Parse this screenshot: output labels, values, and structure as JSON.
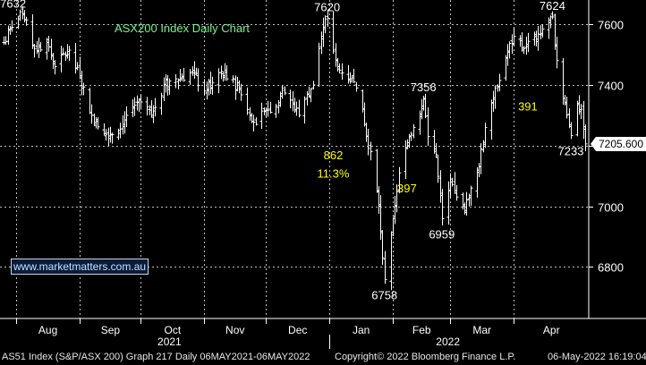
{
  "chart_data": {
    "type": "ohlc",
    "title": "ASX200 Index Daily Chart",
    "x_start": "2021-07-26",
    "x_end": "2022-05-06",
    "ylim": [
      6630,
      7680
    ],
    "grid": true,
    "month_labels": [
      {
        "date": "2021-08-01",
        "label": "Aug"
      },
      {
        "date": "2021-09-01",
        "label": "Sep"
      },
      {
        "date": "2021-10-01",
        "label": "Oct"
      },
      {
        "date": "2021-11-01",
        "label": "Nov"
      },
      {
        "date": "2021-12-01",
        "label": "Dec"
      },
      {
        "date": "2022-01-01",
        "label": "Jan"
      },
      {
        "date": "2022-02-01",
        "label": "Feb"
      },
      {
        "date": "2022-03-01",
        "label": "Mar"
      },
      {
        "date": "2022-04-01",
        "label": "Apr"
      }
    ],
    "year_labels": [
      {
        "date": "2021-10-15",
        "label": "2021"
      },
      {
        "date": "2022-02-28",
        "label": "2022"
      }
    ],
    "y_ticks": [
      6800,
      7000,
      7200,
      7400,
      7600
    ],
    "last_price": 7205.6,
    "last_price_label": "7205.600",
    "keypoints": [
      {
        "date": "2021-07-26",
        "close": 7540
      },
      {
        "date": "2021-07-30",
        "close": 7590
      },
      {
        "date": "2021-08-04",
        "close": 7632
      },
      {
        "date": "2021-08-10",
        "close": 7520
      },
      {
        "date": "2021-08-16",
        "close": 7540
      },
      {
        "date": "2021-08-20",
        "close": 7460
      },
      {
        "date": "2021-08-26",
        "close": 7510
      },
      {
        "date": "2021-09-01",
        "close": 7430
      },
      {
        "date": "2021-09-07",
        "close": 7300
      },
      {
        "date": "2021-09-13",
        "close": 7240
      },
      {
        "date": "2021-09-20",
        "close": 7250
      },
      {
        "date": "2021-09-24",
        "close": 7300
      },
      {
        "date": "2021-09-30",
        "close": 7350
      },
      {
        "date": "2021-10-06",
        "close": 7300
      },
      {
        "date": "2021-10-12",
        "close": 7400
      },
      {
        "date": "2021-10-18",
        "close": 7420
      },
      {
        "date": "2021-10-26",
        "close": 7440
      },
      {
        "date": "2021-11-01",
        "close": 7380
      },
      {
        "date": "2021-11-08",
        "close": 7440
      },
      {
        "date": "2021-11-12",
        "close": 7420
      },
      {
        "date": "2021-11-18",
        "close": 7390
      },
      {
        "date": "2021-11-26",
        "close": 7270
      },
      {
        "date": "2021-12-01",
        "close": 7320
      },
      {
        "date": "2021-12-06",
        "close": 7330
      },
      {
        "date": "2021-12-09",
        "close": 7390
      },
      {
        "date": "2021-12-13",
        "close": 7350
      },
      {
        "date": "2021-12-17",
        "close": 7300
      },
      {
        "date": "2021-12-21",
        "close": 7370
      },
      {
        "date": "2021-12-24",
        "close": 7400
      },
      {
        "date": "2021-12-28",
        "close": 7560
      },
      {
        "date": "2021-12-31",
        "close": 7620
      },
      {
        "date": "2022-01-04",
        "close": 7480
      },
      {
        "date": "2022-01-07",
        "close": 7440
      },
      {
        "date": "2022-01-11",
        "close": 7420
      },
      {
        "date": "2022-01-14",
        "close": 7390
      },
      {
        "date": "2022-01-18",
        "close": 7270
      },
      {
        "date": "2022-01-21",
        "close": 7180
      },
      {
        "date": "2022-01-25",
        "close": 7000
      },
      {
        "date": "2022-01-27",
        "close": 6830
      },
      {
        "date": "2022-01-28",
        "close": 6758
      },
      {
        "date": "2022-02-01",
        "close": 6960
      },
      {
        "date": "2022-02-04",
        "close": 7110
      },
      {
        "date": "2022-02-08",
        "close": 7200
      },
      {
        "date": "2022-02-11",
        "close": 7260
      },
      {
        "date": "2022-02-16",
        "close": 7356
      },
      {
        "date": "2022-02-18",
        "close": 7230
      },
      {
        "date": "2022-02-22",
        "close": 7170
      },
      {
        "date": "2022-02-25",
        "close": 6959
      },
      {
        "date": "2022-03-01",
        "close": 7080
      },
      {
        "date": "2022-03-04",
        "close": 7030
      },
      {
        "date": "2022-03-08",
        "close": 6980
      },
      {
        "date": "2022-03-11",
        "close": 7060
      },
      {
        "date": "2022-03-15",
        "close": 7130
      },
      {
        "date": "2022-03-18",
        "close": 7260
      },
      {
        "date": "2022-03-23",
        "close": 7390
      },
      {
        "date": "2022-03-28",
        "close": 7490
      },
      {
        "date": "2022-04-01",
        "close": 7560
      },
      {
        "date": "2022-04-06",
        "close": 7520
      },
      {
        "date": "2022-04-11",
        "close": 7560
      },
      {
        "date": "2022-04-14",
        "close": 7570
      },
      {
        "date": "2022-04-20",
        "close": 7624
      },
      {
        "date": "2022-04-22",
        "close": 7480
      },
      {
        "date": "2022-04-27",
        "close": 7300
      },
      {
        "date": "2022-04-29",
        "close": 7233
      },
      {
        "date": "2022-05-02",
        "close": 7340
      },
      {
        "date": "2022-05-04",
        "close": 7320
      },
      {
        "date": "2022-05-06",
        "close": 7205.6
      }
    ],
    "annotations": [
      {
        "text": "7632",
        "date": "2021-08-04",
        "y": 7632,
        "color": "#ffffff"
      },
      {
        "text": "7620",
        "date": "2021-12-31",
        "y": 7620,
        "color": "#ffffff"
      },
      {
        "text": "7356",
        "date": "2022-02-16",
        "y": 7356,
        "color": "#ffffff"
      },
      {
        "text": "7624",
        "date": "2022-04-20",
        "y": 7624,
        "color": "#ffffff"
      },
      {
        "text": "6758",
        "date": "2022-01-28",
        "y": 6758,
        "color": "#ffffff"
      },
      {
        "text": "6959",
        "date": "2022-02-25",
        "y": 6959,
        "color": "#ffffff"
      },
      {
        "text": "7233",
        "date": "2022-04-29",
        "y": 7233,
        "color": "#ffffff"
      },
      {
        "text": "862",
        "date": "2022-01-03",
        "y": 7170,
        "color": "#ffff00"
      },
      {
        "text": "11.3%",
        "date": "2022-01-03",
        "y": 7110,
        "color": "#ffff00"
      },
      {
        "text": "397",
        "date": "2022-02-08",
        "y": 7060,
        "color": "#ffff00"
      },
      {
        "text": "391",
        "date": "2022-04-08",
        "y": 7330,
        "color": "#ffff00"
      }
    ]
  },
  "watermark": "www.marketmatters.com.au",
  "footer": {
    "left": "AS51 Index (S&P/ASX 200) Graph 217  Daily 06MAY2021-06MAY2022",
    "center": "Copyright© 2022 Bloomberg Finance L.P.",
    "right": "06-May-2022 16:19:04"
  },
  "colors": {
    "background": "#000000",
    "bars": "#ffffff",
    "grid": "#bdbdbd",
    "title": "#7cf28c",
    "annotation_move": "#ffff00",
    "watermark_text": "#bfe4ff"
  }
}
